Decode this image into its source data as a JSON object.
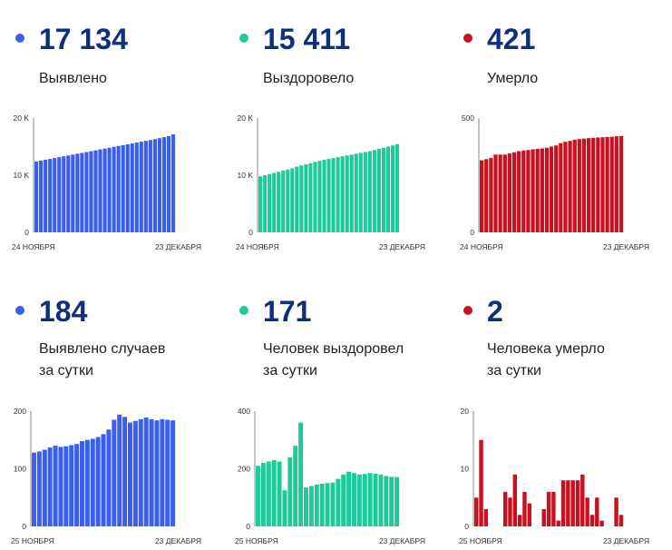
{
  "panels": [
    {
      "id": "detected-total",
      "color": "#3a5ef0",
      "value": "17 134",
      "label_lines": [
        "Выявлено"
      ],
      "chart_data": {
        "type": "bar",
        "x_start_label": "24 НОЯБРЯ",
        "x_end_label": "23 ДЕКАБРЯ",
        "ylim": [
          0,
          20000
        ],
        "yticks": [
          {
            "v": 0,
            "t": "0"
          },
          {
            "v": 10000,
            "t": "10 K"
          },
          {
            "v": 20000,
            "t": "20 K"
          }
        ],
        "values": [
          12400,
          12550,
          12700,
          12850,
          13000,
          13150,
          13300,
          13450,
          13600,
          13750,
          13900,
          14050,
          14200,
          14350,
          14500,
          14650,
          14800,
          14950,
          15100,
          15250,
          15400,
          15550,
          15700,
          15850,
          16000,
          16150,
          16300,
          16480,
          16660,
          16850,
          17134
        ]
      }
    },
    {
      "id": "recovered-total",
      "color": "#20c99a",
      "value": "15 411",
      "label_lines": [
        "Выздоровело"
      ],
      "chart_data": {
        "type": "bar",
        "x_start_label": "24 НОЯБРЯ",
        "x_end_label": "23 ДЕКАБРЯ",
        "ylim": [
          0,
          20000
        ],
        "yticks": [
          {
            "v": 0,
            "t": "0"
          },
          {
            "v": 10000,
            "t": "10 K"
          },
          {
            "v": 20000,
            "t": "20 K"
          }
        ],
        "values": [
          9800,
          10000,
          10200,
          10400,
          10600,
          10800,
          11000,
          11200,
          11500,
          11700,
          11900,
          12100,
          12300,
          12500,
          12700,
          12850,
          13000,
          13150,
          13300,
          13450,
          13600,
          13750,
          13900,
          14050,
          14200,
          14400,
          14600,
          14800,
          15000,
          15200,
          15411
        ]
      }
    },
    {
      "id": "deaths-total",
      "color": "#c8101e",
      "value": "421",
      "label_lines": [
        "Умерло"
      ],
      "chart_data": {
        "type": "bar",
        "x_start_label": "24 НОЯБРЯ",
        "x_end_label": "23 ДЕКАБРЯ",
        "ylim": [
          0,
          500
        ],
        "yticks": [
          {
            "v": 0,
            "t": "0"
          },
          {
            "v": 500,
            "t": "500"
          }
        ],
        "values": [
          315,
          320,
          325,
          340,
          340,
          340,
          345,
          350,
          355,
          358,
          360,
          363,
          365,
          367,
          370,
          375,
          380,
          390,
          396,
          400,
          405,
          408,
          410,
          412,
          413,
          415,
          416,
          417,
          418,
          420,
          421
        ]
      }
    },
    {
      "id": "detected-daily",
      "color": "#3a5ef0",
      "value": "184",
      "label_lines": [
        "Выявлено случаев",
        "за сутки"
      ],
      "chart_data": {
        "type": "bar",
        "x_start_label": "25 НОЯБРЯ",
        "x_end_label": "23 ДЕКАБРЯ",
        "ylim": [
          0,
          200
        ],
        "yticks": [
          {
            "v": 0,
            "t": "0"
          },
          {
            "v": 100,
            "t": "100"
          },
          {
            "v": 200,
            "t": "200"
          }
        ],
        "values": [
          128,
          130,
          133,
          137,
          140,
          138,
          139,
          141,
          143,
          148,
          150,
          152,
          155,
          160,
          168,
          185,
          194,
          190,
          180,
          183,
          186,
          189,
          186,
          184,
          186,
          185,
          184
        ]
      }
    },
    {
      "id": "recovered-daily",
      "color": "#20c99a",
      "value": "171",
      "label_lines": [
        "Человек выздоровел",
        "за сутки"
      ],
      "chart_data": {
        "type": "bar",
        "x_start_label": "25 НОЯБРЯ",
        "x_end_label": "23 ДЕКАБРЯ",
        "ylim": [
          0,
          400
        ],
        "yticks": [
          {
            "v": 0,
            "t": "0"
          },
          {
            "v": 200,
            "t": "200"
          },
          {
            "v": 400,
            "t": "400"
          }
        ],
        "values": [
          210,
          220,
          225,
          230,
          225,
          125,
          240,
          280,
          360,
          135,
          140,
          145,
          148,
          150,
          152,
          165,
          180,
          190,
          185,
          180,
          182,
          185,
          183,
          180,
          175,
          172,
          171
        ]
      }
    },
    {
      "id": "deaths-daily",
      "color": "#c8101e",
      "value": "2",
      "label_lines": [
        "Человека умерло",
        "за сутки"
      ],
      "chart_data": {
        "type": "bar",
        "x_start_label": "25 НОЯБРЯ",
        "x_end_label": "23 ДЕКАБРЯ",
        "ylim": [
          0,
          20
        ],
        "yticks": [
          {
            "v": 0,
            "t": "0"
          },
          {
            "v": 10,
            "t": "10"
          },
          {
            "v": 20,
            "t": "20"
          }
        ],
        "values": [
          5,
          15,
          3,
          0,
          0,
          0,
          6,
          5,
          9,
          2,
          6,
          4,
          0,
          0,
          3,
          6,
          6,
          1,
          8,
          8,
          8,
          8,
          9,
          5,
          2,
          5,
          1,
          0,
          0,
          5,
          2
        ]
      }
    }
  ]
}
